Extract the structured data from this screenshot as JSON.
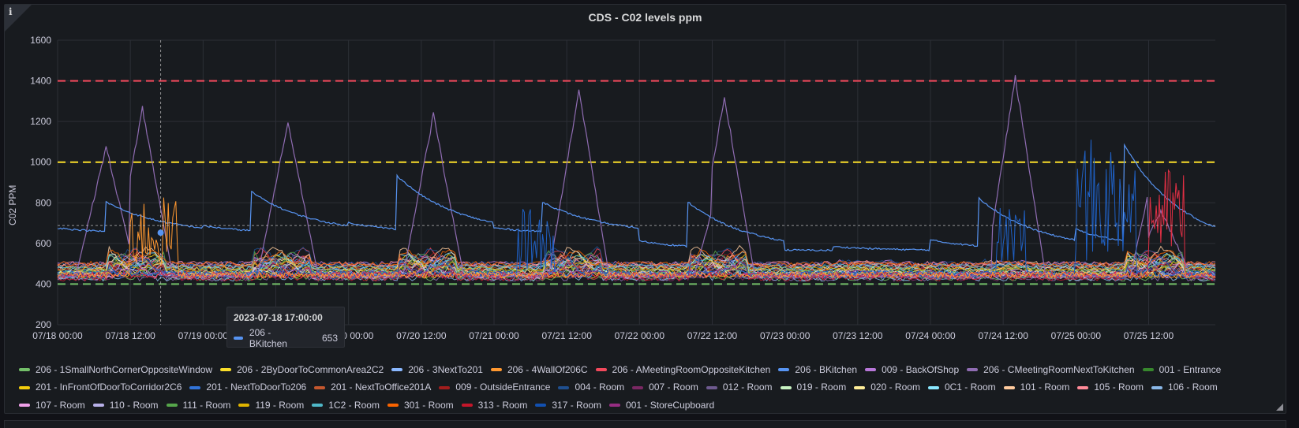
{
  "panel": {
    "title": "CDS - C02 levels ppm",
    "info_icon": "info-icon"
  },
  "chart_data": {
    "type": "line",
    "title": "CDS - C02 levels ppm",
    "ylabel": "C02 PPM",
    "xlabel": "",
    "ylim": [
      200,
      1600
    ],
    "y_ticks": [
      "200",
      "400",
      "600",
      "800",
      "1000",
      "1200",
      "1400",
      "1600"
    ],
    "x_ticks": [
      "07/18 00:00",
      "07/18 12:00",
      "07/19 00:00",
      "07/19 12:00",
      "07/20 00:00",
      "07/20 12:00",
      "07/21 00:00",
      "07/21 12:00",
      "07/22 00:00",
      "07/22 12:00",
      "07/23 00:00",
      "07/23 12:00",
      "07/24 00:00",
      "07/24 12:00",
      "07/25 00:00",
      "07/25 12:00"
    ],
    "x_range": [
      "07/18 00:00",
      "07/25 23:00"
    ],
    "thresholds": [
      {
        "value": 1400,
        "color": "#f2495c"
      },
      {
        "value": 1000,
        "color": "#fade2a"
      },
      {
        "value": 400,
        "color": "#73bf69"
      }
    ],
    "grid": true,
    "legend_position": "bottom",
    "series_colors": {
      "kitchen_c_meeting": "#8f6cb2",
      "kitchen_b": "#5794f2",
      "room_317": "#1f60c4",
      "room_313": "#e02f44",
      "room_301": "#ff9830"
    },
    "highlight": {
      "time": "2023-07-18 17:00:00",
      "series": "206 - BKitchen",
      "value": 653
    },
    "series": [
      {
        "name": "206 - 1SmallNorthCornerOppositeWindow",
        "color": "#73bf69"
      },
      {
        "name": "206 - 2ByDoorToCommonArea2C2",
        "color": "#fade2a"
      },
      {
        "name": "206 - 3NextTo201",
        "color": "#8ab8ff"
      },
      {
        "name": "206 - 4WallOf206C",
        "color": "#ff9830"
      },
      {
        "name": "206 - AMeetingRoomOppositeKitchen",
        "color": "#f2495c"
      },
      {
        "name": "206 - BKitchen",
        "color": "#5794f2"
      },
      {
        "name": "009 - BackOfShop",
        "color": "#b877d9"
      },
      {
        "name": "206 - CMeetingRoomNextToKitchen",
        "color": "#8f6cb2"
      },
      {
        "name": "001 - Entrance",
        "color": "#37872d"
      },
      {
        "name": "201 - InFrontOfDoorToCorridor2C6",
        "color": "#f2cc0c"
      },
      {
        "name": "201 - NextToDoorTo206",
        "color": "#3274d9"
      },
      {
        "name": "201 - NextToOffice201A",
        "color": "#c4572e"
      },
      {
        "name": "009 - OutsideEntrance",
        "color": "#a21d1d"
      },
      {
        "name": "004 - Room",
        "color": "#1f4f8f"
      },
      {
        "name": "007 - Room",
        "color": "#7a2863"
      },
      {
        "name": "012 - Room",
        "color": "#6e5a8f"
      },
      {
        "name": "019 - Room",
        "color": "#c8f2c2"
      },
      {
        "name": "020 - Room",
        "color": "#ffee99"
      },
      {
        "name": "0C1 - Room",
        "color": "#8ae8ff"
      },
      {
        "name": "101 - Room",
        "color": "#ffcb9e"
      },
      {
        "name": "105 - Room",
        "color": "#ff8a98"
      },
      {
        "name": "106 - Room",
        "color": "#8ab8e8"
      },
      {
        "name": "107 - Room",
        "color": "#f0a0e8"
      },
      {
        "name": "110 - Room",
        "color": "#b8b0e8"
      },
      {
        "name": "111 - Room",
        "color": "#56a64b"
      },
      {
        "name": "119 - Room",
        "color": "#e0b400"
      },
      {
        "name": "1C2 - Room",
        "color": "#4fb8c8"
      },
      {
        "name": "301 - Room",
        "color": "#fa6400"
      },
      {
        "name": "313 - Room",
        "color": "#c4162a"
      },
      {
        "name": "317 - Room",
        "color": "#1250b0"
      },
      {
        "name": "001 - StoreCupboard",
        "color": "#962d82"
      }
    ]
  }
}
